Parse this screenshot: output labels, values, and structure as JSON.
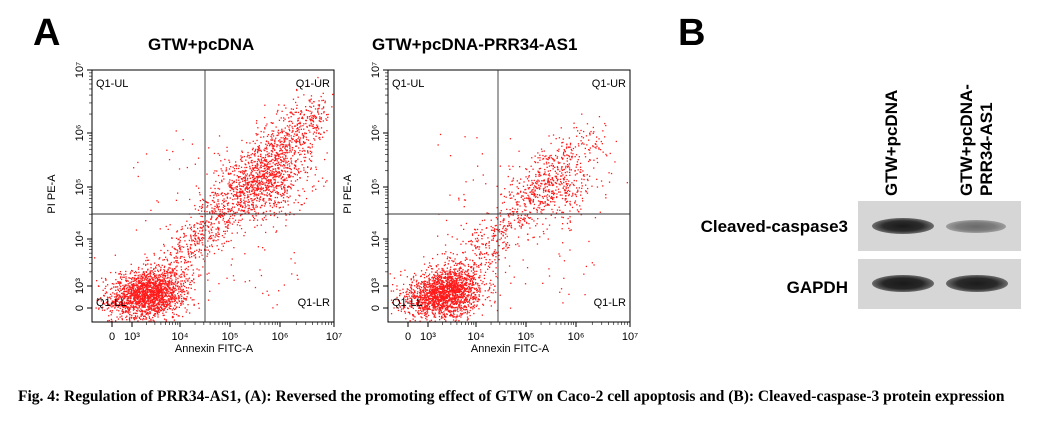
{
  "figure": {
    "panel_a_letter": "A",
    "panel_b_letter": "B",
    "caption": "Fig. 4: Regulation of PRR34-AS1, (A): Reversed the promoting effect of GTW on Caco-2 cell apoptosis and (B): Cleaved-caspase-3 protein expression"
  },
  "flow_plots": [
    {
      "title": "GTW+pcDNA",
      "ylabel": "PI PE-A",
      "xlabel": "Annexin FITC-A",
      "quadrants": {
        "ul": "Q1-UL",
        "ur": "Q1-UR",
        "ll": "Q1-LL",
        "lr": "Q1-LR"
      },
      "x_ticks": [
        "0",
        "10³",
        "10⁴",
        "10⁵",
        "10⁶",
        "10⁷"
      ],
      "y_ticks": [
        "0",
        "10³",
        "10⁴",
        "10⁵",
        "10⁶",
        "10⁷"
      ],
      "dot_color": "#ff1a1a",
      "late_population": "high"
    },
    {
      "title": "GTW+pcDNA-PRR34-AS1",
      "ylabel": "PI PE-A",
      "xlabel": "Annexin FITC-A",
      "quadrants": {
        "ul": "Q1-UL",
        "ur": "Q1-UR",
        "ll": "Q1-LL",
        "lr": "Q1-LR"
      },
      "x_ticks": [
        "0",
        "10³",
        "10⁴",
        "10⁵",
        "10⁶",
        "10⁷"
      ],
      "y_ticks": [
        "0",
        "10³",
        "10⁴",
        "10⁵",
        "10⁶",
        "10⁷"
      ],
      "dot_color": "#ff1a1a",
      "late_population": "reduced"
    }
  ],
  "western_blot": {
    "lanes": [
      "GTW+pcDNA",
      "GTW+pcDNA-\nPRR34-AS1"
    ],
    "rows": [
      {
        "label": "Cleaved-caspase3",
        "band_intensity": [
          1.0,
          0.55
        ]
      },
      {
        "label": "GAPDH",
        "band_intensity": [
          1.0,
          0.95
        ]
      }
    ]
  }
}
